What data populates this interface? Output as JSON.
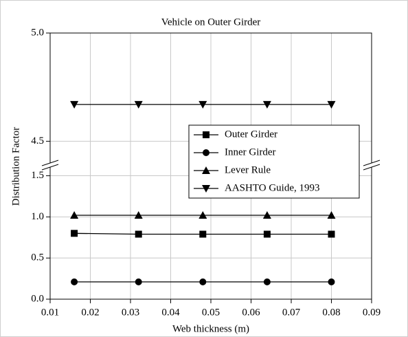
{
  "chart_data": {
    "type": "line",
    "title": "Vehicle on Outer Girder",
    "x_label": "Web thickness (m)",
    "y_label": "Distribution Factor",
    "x": [
      0.016,
      0.032,
      0.048,
      0.064,
      0.08
    ],
    "xlim": [
      0.01,
      0.09
    ],
    "xticks": [
      0.01,
      0.02,
      0.03,
      0.04,
      0.05,
      0.06,
      0.07,
      0.08,
      0.09
    ],
    "y_segments": [
      {
        "ylim": [
          0,
          1.63
        ],
        "yticks": [
          {
            "value": 0,
            "label": "0.0"
          },
          0.5,
          {
            "value": 1,
            "label": "1.0"
          },
          1.5
        ]
      },
      {
        "ylim": [
          4.39,
          5.0
        ],
        "yticks": [
          4.5,
          {
            "value": 5,
            "label": "5.0"
          }
        ]
      }
    ],
    "grid": true,
    "legend": "right",
    "series": [
      {
        "name": "Outer Girder",
        "color": "#000000",
        "marker": "square",
        "values": [
          0.8,
          0.79,
          0.79,
          0.79,
          0.79
        ]
      },
      {
        "name": "Inner Girder",
        "color": "#000000",
        "marker": "circle",
        "values": [
          0.21,
          0.21,
          0.21,
          0.21,
          0.21
        ]
      },
      {
        "name": "Lever Rule",
        "color": "#000000",
        "marker": "triangle-up",
        "values": [
          1.02,
          1.02,
          1.02,
          1.02,
          1.02
        ]
      },
      {
        "name": "AASHTO Guide, 1993",
        "color": "#000000",
        "marker": "triangle-down",
        "values": [
          4.67,
          4.67,
          4.67,
          4.67,
          4.67
        ]
      }
    ]
  }
}
